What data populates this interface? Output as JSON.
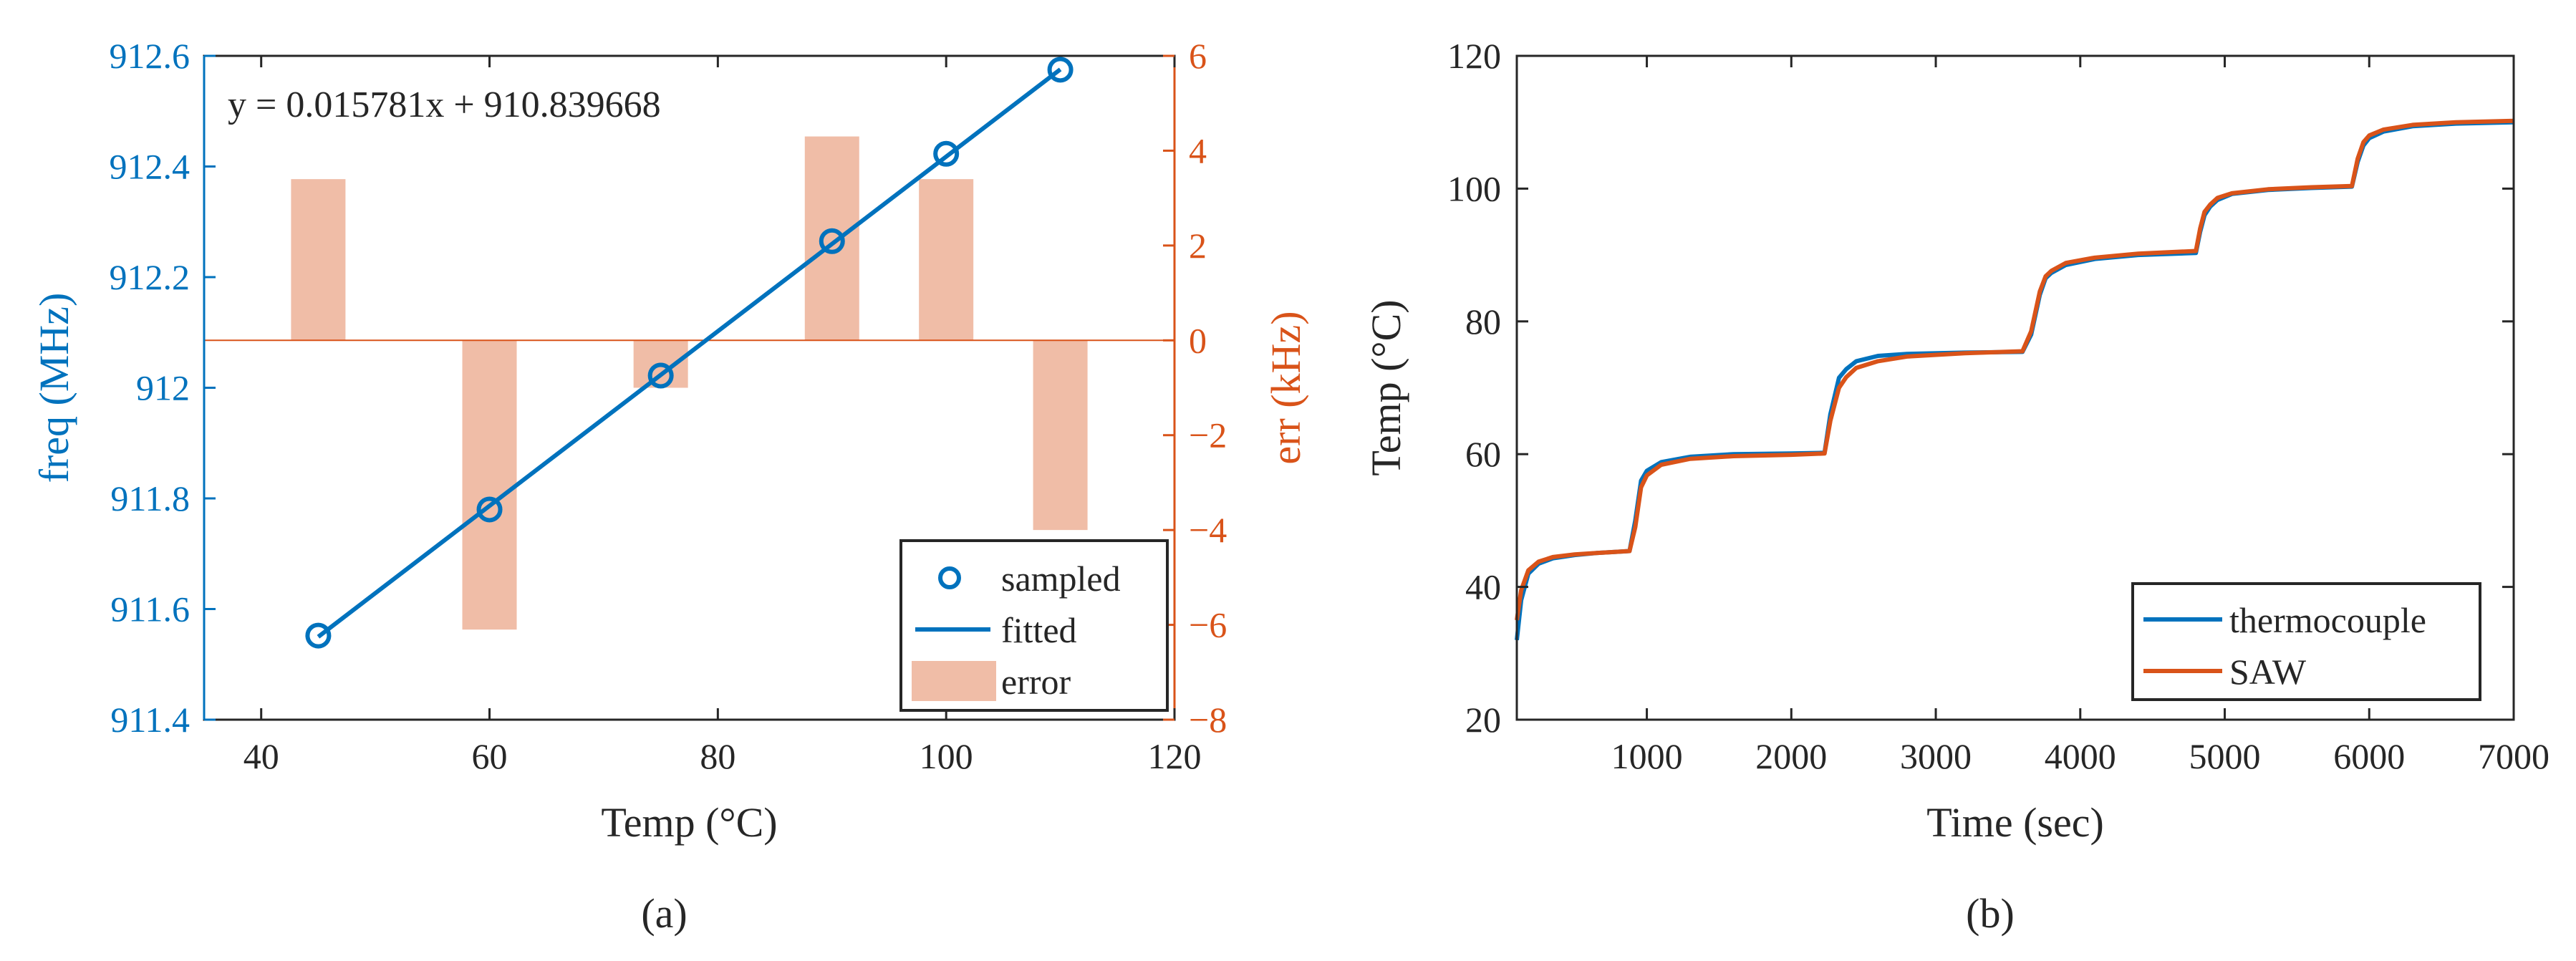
{
  "colors": {
    "blue": "#0072BD",
    "orange": "#D95319",
    "bar": "#F0BDA7",
    "axis": "#262626",
    "text": "#262626"
  },
  "chart_data": [
    {
      "type": "scatter+line+bar",
      "panel_label": "(a)",
      "xlabel": "Temp (°C)",
      "ylabel_left": "freq (MHz)",
      "ylabel_right": "err (kHz)",
      "xlim": [
        35,
        120
      ],
      "ylim_left": [
        911.4,
        912.6
      ],
      "ylim_right": [
        -8,
        6
      ],
      "xticks": [
        40,
        60,
        80,
        100,
        120
      ],
      "yticks_left": [
        911.4,
        911.6,
        911.8,
        912,
        912.2,
        912.4,
        912.6
      ],
      "yticks_right": [
        -8,
        -6,
        -4,
        -2,
        0,
        2,
        4,
        6
      ],
      "equation": "y = 0.015781x + 910.839668",
      "series": [
        {
          "name": "sampled",
          "kind": "scatter",
          "axis": "left",
          "x": [
            45,
            60,
            75,
            90,
            100,
            110
          ],
          "y": [
            911.552,
            911.78,
            912.022,
            912.265,
            912.423,
            912.575
          ]
        },
        {
          "name": "fitted",
          "kind": "line",
          "axis": "left",
          "x": [
            45,
            110
          ],
          "y": [
            911.5498,
            912.5756
          ]
        },
        {
          "name": "error",
          "kind": "bar",
          "axis": "right",
          "x": [
            45,
            60,
            75,
            90,
            100,
            110
          ],
          "values": [
            3.4,
            -6.1,
            -1.0,
            4.3,
            3.4,
            -4.0
          ]
        }
      ],
      "legend": {
        "position": "bottom-right",
        "entries": [
          "sampled",
          "fitted",
          "error"
        ]
      }
    },
    {
      "type": "line",
      "panel_label": "(b)",
      "xlabel": "Time (sec)",
      "ylabel": "Temp (°C)",
      "xlim": [
        100,
        7000
      ],
      "ylim": [
        20,
        120
      ],
      "xticks": [
        1000,
        2000,
        3000,
        4000,
        5000,
        6000,
        7000
      ],
      "yticks": [
        20,
        40,
        60,
        80,
        100,
        120
      ],
      "series": [
        {
          "name": "thermocouple",
          "x": [
            100,
            130,
            180,
            250,
            350,
            500,
            650,
            800,
            880,
            920,
            960,
            1000,
            1100,
            1300,
            1600,
            2000,
            2230,
            2270,
            2330,
            2380,
            2450,
            2600,
            2800,
            3200,
            3600,
            3660,
            3720,
            3760,
            3800,
            3900,
            4100,
            4400,
            4800,
            4830,
            4860,
            4900,
            4950,
            5050,
            5300,
            5600,
            5880,
            5920,
            5960,
            6000,
            6100,
            6300,
            6600,
            7000
          ],
          "y": [
            32,
            38,
            42,
            43.5,
            44.3,
            44.8,
            45.1,
            45.3,
            45.4,
            50,
            56,
            57.5,
            58.8,
            59.6,
            60,
            60.1,
            60.2,
            66,
            71.5,
            72.8,
            74,
            74.8,
            75.1,
            75.3,
            75.4,
            78,
            84,
            86.5,
            87.3,
            88.5,
            89.4,
            90,
            90.3,
            93.5,
            96,
            97.3,
            98.3,
            99.2,
            99.8,
            100.1,
            100.3,
            104,
            106.5,
            107.6,
            108.6,
            109.4,
            109.8,
            110
          ]
        },
        {
          "name": "SAW",
          "x": [
            100,
            130,
            180,
            250,
            350,
            500,
            650,
            800,
            880,
            920,
            960,
            1000,
            1100,
            1300,
            1600,
            2000,
            2230,
            2270,
            2330,
            2380,
            2450,
            2600,
            2800,
            3200,
            3600,
            3660,
            3720,
            3760,
            3800,
            3900,
            4100,
            4400,
            4800,
            4830,
            4860,
            4900,
            4950,
            5050,
            5300,
            5600,
            5880,
            5920,
            5960,
            6000,
            6100,
            6300,
            6600,
            7000
          ],
          "y": [
            35,
            39.5,
            42.5,
            43.8,
            44.5,
            44.9,
            45.1,
            45.3,
            45.4,
            49,
            55,
            56.8,
            58.4,
            59.3,
            59.7,
            59.9,
            60.1,
            65,
            70,
            71.6,
            73,
            74,
            74.7,
            75.2,
            75.5,
            78.5,
            84.5,
            86.8,
            87.6,
            88.8,
            89.6,
            90.2,
            90.6,
            94,
            96.5,
            97.6,
            98.6,
            99.3,
            99.9,
            100.2,
            100.4,
            104.5,
            107,
            108,
            108.9,
            109.6,
            110,
            110.2
          ]
        }
      ],
      "legend": {
        "position": "bottom-right",
        "entries": [
          "thermocouple",
          "SAW"
        ]
      }
    }
  ]
}
